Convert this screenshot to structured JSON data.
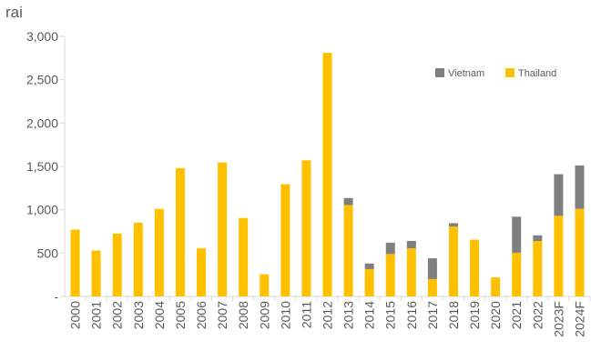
{
  "colors": {
    "vietnam": "#7f7f7f",
    "thailand": "#ffc000",
    "axis": "#d9d9d9",
    "text": "#595959"
  },
  "chart_data": {
    "type": "bar",
    "stacked": true,
    "ylabel": "rai",
    "ylim": [
      0,
      3000
    ],
    "yticks": [
      {
        "value": 0,
        "label": "-"
      },
      {
        "value": 500,
        "label": "500"
      },
      {
        "value": 1000,
        "label": "1,000"
      },
      {
        "value": 1500,
        "label": "1,500"
      },
      {
        "value": 2000,
        "label": "2,000"
      },
      {
        "value": 2500,
        "label": "2,500"
      },
      {
        "value": 3000,
        "label": "3,000"
      }
    ],
    "grid": false,
    "legend_position": "top-right",
    "categories": [
      "2000",
      "2001",
      "2002",
      "2003",
      "2004",
      "2005",
      "2006",
      "2007",
      "2008",
      "2009",
      "2010",
      "2011",
      "2012",
      "2013",
      "2014",
      "2015",
      "2016",
      "2017",
      "2018",
      "2019",
      "2020",
      "2021",
      "2022",
      "2023F",
      "2024F"
    ],
    "series": [
      {
        "name": "Thailand",
        "values": [
          770,
          530,
          725,
          850,
          1010,
          1480,
          555,
          1545,
          905,
          255,
          1295,
          1570,
          2810,
          1055,
          315,
          490,
          555,
          200,
          805,
          655,
          220,
          505,
          640,
          930,
          1010
        ]
      },
      {
        "name": "Vietnam",
        "values": [
          0,
          0,
          0,
          0,
          0,
          0,
          0,
          0,
          0,
          0,
          0,
          0,
          0,
          80,
          65,
          130,
          85,
          240,
          40,
          0,
          0,
          415,
          65,
          480,
          500
        ]
      }
    ]
  }
}
